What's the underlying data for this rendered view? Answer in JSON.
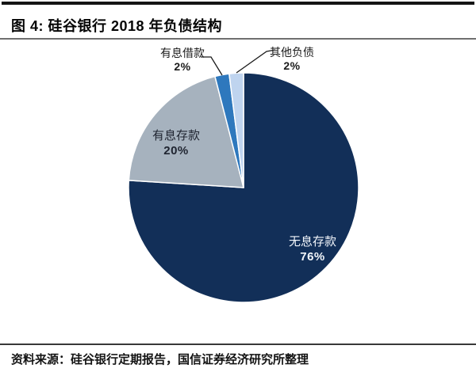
{
  "header": {
    "title": "图 4: 硅谷银行 2018 年负债结构"
  },
  "footer": {
    "source": "资料来源：硅谷银行定期报告，国信证券经济研究所整理"
  },
  "chart_data": {
    "type": "pie",
    "title": "硅谷银行2018年负债结构",
    "value_unit": "percent",
    "start_angle_deg": 0,
    "direction": "clockwise",
    "legend_position": "none",
    "categories": [
      "无息存款",
      "有息存款",
      "有息借款",
      "其他负债"
    ],
    "values": [
      76,
      20,
      2,
      2
    ],
    "separator_color": "#FFFFFF",
    "leader_line_color": "#1a1a1a",
    "background": "#FFFFFF",
    "slices": [
      {
        "label": "无息存款",
        "value": 76,
        "display": "76%",
        "color": "#122F58",
        "label_color": "#F2F6FB",
        "label_placement": "inside"
      },
      {
        "label": "有息存款",
        "value": 20,
        "display": "20%",
        "color": "#A6B2BE",
        "label_color": "#1F2430",
        "label_placement": "inside"
      },
      {
        "label": "有息借款",
        "value": 2,
        "display": "2%",
        "color": "#2E78BD",
        "label_color": "#1A1A1A",
        "label_placement": "outside-callout"
      },
      {
        "label": "其他负债",
        "value": 2,
        "display": "2%",
        "color": "#BFD4EF",
        "label_color": "#1A1A1A",
        "label_placement": "outside-callout"
      }
    ]
  }
}
